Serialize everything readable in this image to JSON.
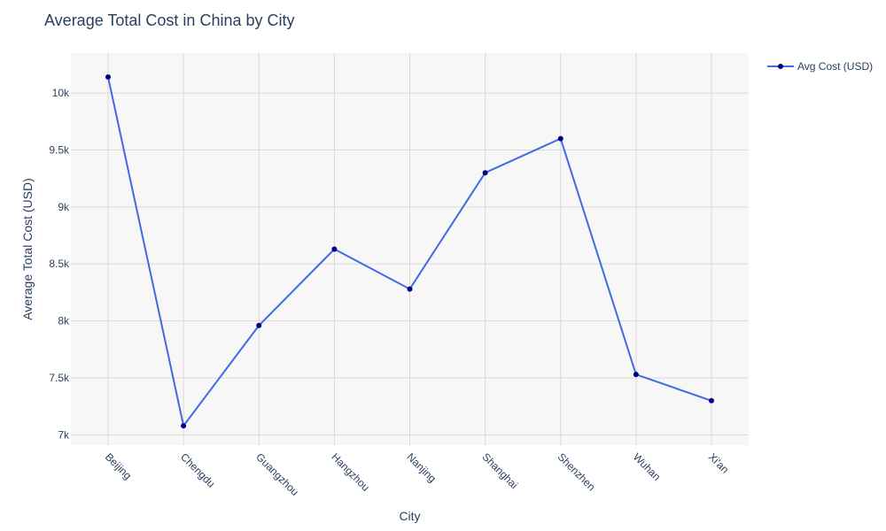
{
  "chart_data": {
    "type": "line",
    "title": "Average Total Cost in China by City",
    "xlabel": "City",
    "ylabel": "Average Total Cost (USD)",
    "categories": [
      "Beijing",
      "Chengdu",
      "Guangzhou",
      "Hangzhou",
      "Nanjing",
      "Shanghai",
      "Shenzhen",
      "Wuhan",
      "Xi'an"
    ],
    "series": [
      {
        "name": "Avg Cost (USD)",
        "values": [
          10140,
          7080,
          7960,
          8630,
          8280,
          9300,
          9600,
          7530,
          7300
        ],
        "line_color": "#4169e1",
        "marker_color": "#000080"
      }
    ],
    "ylim": [
      6910,
      10350
    ],
    "yticks": [
      7000,
      7500,
      8000,
      8500,
      9000,
      9500,
      10000
    ],
    "ytick_labels": [
      "7k",
      "7.5k",
      "8k",
      "8.5k",
      "9k",
      "9.5k",
      "10k"
    ],
    "grid": true,
    "legend_position": "top-right",
    "plot_background": "#f7f7f7"
  }
}
